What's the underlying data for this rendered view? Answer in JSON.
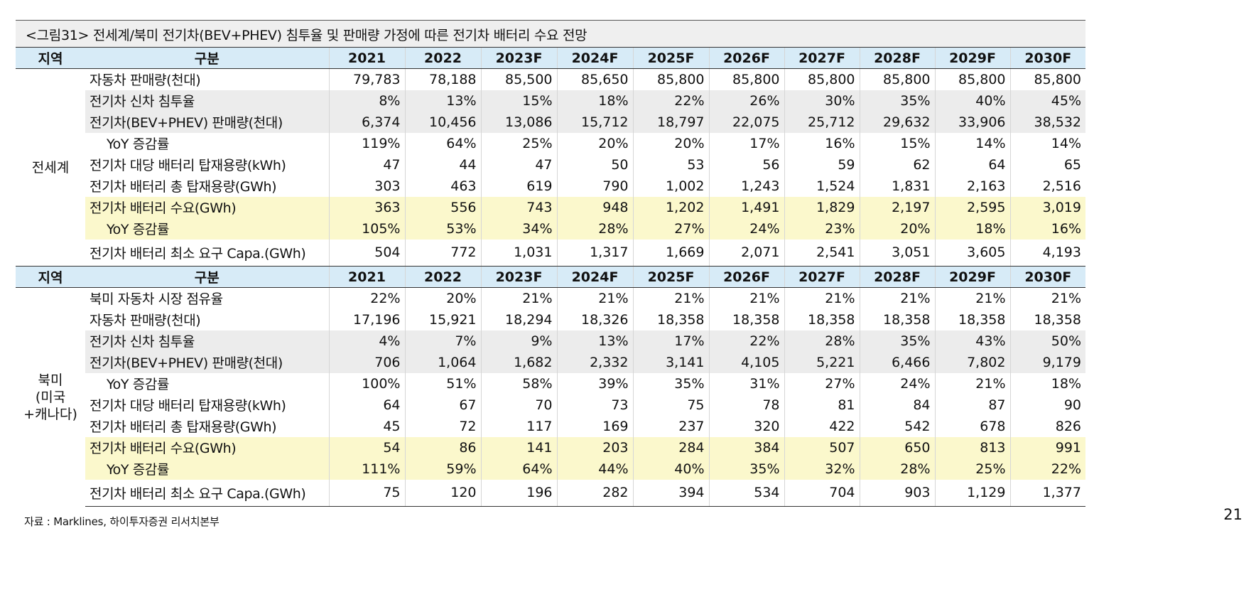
{
  "title": "<그림31> 전세계/북미 전기차(BEV+PHEV) 침투율 및 판매량 가정에 따른 전기차 배터리 수요 전망",
  "header": [
    "지역",
    "구분",
    "2021",
    "2022",
    "2023F",
    "2024F",
    "2025F",
    "2026F",
    "2027F",
    "2028F",
    "2029F",
    "2030F"
  ],
  "sections": [
    {
      "region": "전세계",
      "rows": [
        {
          "label": "자동차 판매량(천대)",
          "values": [
            "79,783",
            "78,188",
            "85,500",
            "85,650",
            "85,800",
            "85,800",
            "85,800",
            "85,800",
            "85,800",
            "85,800"
          ]
        },
        {
          "label": "전기차 신차 침투율",
          "values": [
            "8%",
            "13%",
            "15%",
            "18%",
            "22%",
            "26%",
            "30%",
            "35%",
            "40%",
            "45%"
          ]
        },
        {
          "label": "전기차(BEV+PHEV) 판매량(천대)",
          "values": [
            "6,374",
            "10,456",
            "13,086",
            "15,712",
            "18,797",
            "22,075",
            "25,712",
            "29,632",
            "33,906",
            "38,532"
          ]
        },
        {
          "label": "YoY 증감률",
          "values": [
            "119%",
            "64%",
            "25%",
            "20%",
            "20%",
            "17%",
            "16%",
            "15%",
            "14%",
            "14%"
          ]
        },
        {
          "label": "전기차 대당 배터리 탑재용량(kWh)",
          "values": [
            "47",
            "44",
            "47",
            "50",
            "53",
            "56",
            "59",
            "62",
            "64",
            "65"
          ]
        },
        {
          "label": "전기차 배터리 총 탑재용량(GWh)",
          "values": [
            "303",
            "463",
            "619",
            "790",
            "1,002",
            "1,243",
            "1,524",
            "1,831",
            "2,163",
            "2,516"
          ]
        },
        {
          "label": "전기차 배터리 수요(GWh)",
          "values": [
            "363",
            "556",
            "743",
            "948",
            "1,202",
            "1,491",
            "1,829",
            "2,197",
            "2,595",
            "3,019"
          ]
        },
        {
          "label": "YoY 증감률",
          "values": [
            "105%",
            "53%",
            "34%",
            "28%",
            "27%",
            "24%",
            "23%",
            "20%",
            "18%",
            "16%"
          ]
        },
        {
          "label": "전기차 배터리 최소 요구 Capa.(GWh)",
          "values": [
            "504",
            "772",
            "1,031",
            "1,317",
            "1,669",
            "2,071",
            "2,541",
            "3,051",
            "3,605",
            "4,193"
          ]
        }
      ]
    },
    {
      "region": "북미\n(미국\n+캐나다)",
      "rows": [
        {
          "label": "북미 자동차 시장 점유율",
          "values": [
            "22%",
            "20%",
            "21%",
            "21%",
            "21%",
            "21%",
            "21%",
            "21%",
            "21%",
            "21%"
          ]
        },
        {
          "label": "자동차 판매량(천대)",
          "values": [
            "17,196",
            "15,921",
            "18,294",
            "18,326",
            "18,358",
            "18,358",
            "18,358",
            "18,358",
            "18,358",
            "18,358"
          ]
        },
        {
          "label": "전기차 신차 침투율",
          "values": [
            "4%",
            "7%",
            "9%",
            "13%",
            "17%",
            "22%",
            "28%",
            "35%",
            "43%",
            "50%"
          ]
        },
        {
          "label": "전기차(BEV+PHEV) 판매량(천대)",
          "values": [
            "706",
            "1,064",
            "1,682",
            "2,332",
            "3,141",
            "4,105",
            "5,221",
            "6,466",
            "7,802",
            "9,179"
          ]
        },
        {
          "label": "YoY 증감률",
          "values": [
            "100%",
            "51%",
            "58%",
            "39%",
            "35%",
            "31%",
            "27%",
            "24%",
            "21%",
            "18%"
          ]
        },
        {
          "label": "전기차 대당 배터리 탑재용량(kWh)",
          "values": [
            "64",
            "67",
            "70",
            "73",
            "75",
            "78",
            "81",
            "84",
            "87",
            "90"
          ]
        },
        {
          "label": "전기차 배터리 총 탑재용량(GWh)",
          "values": [
            "45",
            "72",
            "117",
            "169",
            "237",
            "320",
            "422",
            "542",
            "678",
            "826"
          ]
        },
        {
          "label": "전기차 배터리 수요(GWh)",
          "values": [
            "54",
            "86",
            "141",
            "203",
            "284",
            "384",
            "507",
            "650",
            "813",
            "991"
          ]
        },
        {
          "label": "YoY 증감률",
          "values": [
            "111%",
            "59%",
            "64%",
            "44%",
            "40%",
            "35%",
            "32%",
            "28%",
            "25%",
            "22%"
          ]
        },
        {
          "label": "전기차 배터리 최소 요구 Capa.(GWh)",
          "values": [
            "75",
            "120",
            "196",
            "282",
            "394",
            "534",
            "704",
            "903",
            "1,129",
            "1,377"
          ]
        }
      ]
    }
  ],
  "source": "자료 : Marklines, 하이투자증권 리서치본부",
  "page_number": "21",
  "colors": {
    "header_bg": "#d7ebf7",
    "gray_row": "#ececec",
    "yellow_row": "#fbf8cc"
  }
}
